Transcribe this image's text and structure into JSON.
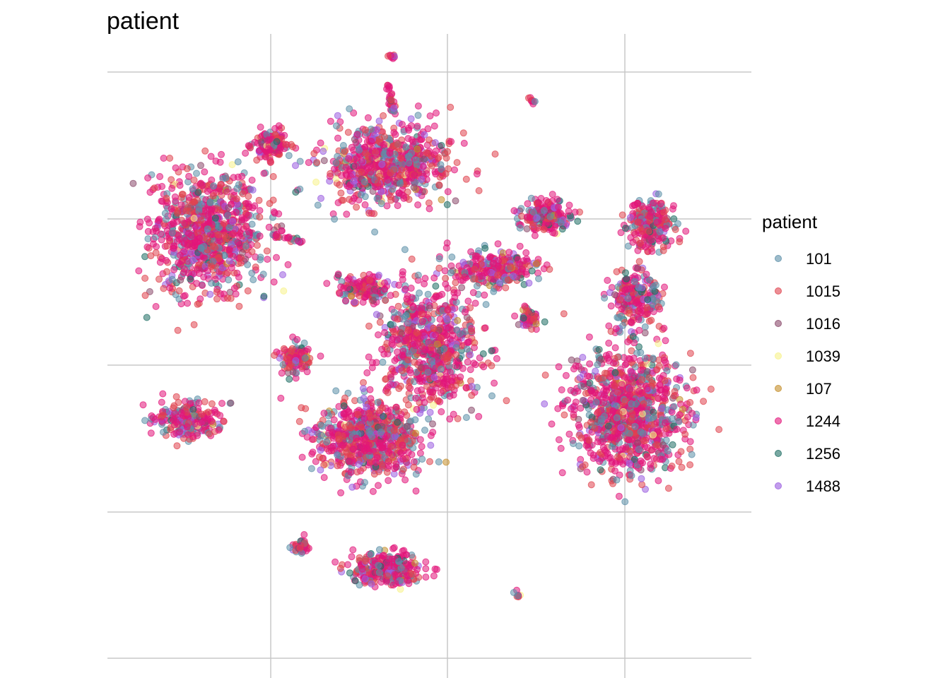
{
  "chart_data": {
    "type": "scatter",
    "title": "patient",
    "xlabel": "",
    "ylabel": "",
    "grid": true,
    "legend": {
      "title": "patient",
      "position": "right",
      "entries": [
        {
          "label": "101",
          "color": "#5b8fa8"
        },
        {
          "label": "1015",
          "color": "#e0434f"
        },
        {
          "label": "1016",
          "color": "#8a4a6b"
        },
        {
          "label": "1039",
          "color": "#f7f28a"
        },
        {
          "label": "107",
          "color": "#c48e2a"
        },
        {
          "label": "1244",
          "color": "#e2157a"
        },
        {
          "label": "1256",
          "color": "#1f6e64"
        },
        {
          "label": "1488",
          "color": "#9a5ce0"
        }
      ]
    },
    "point_alpha": 0.55,
    "clusters": [
      {
        "name": "upper-left",
        "cx": -7.6,
        "cy": 3.9,
        "sx": 1.75,
        "sy": 1.9,
        "n": 900
      },
      {
        "name": "upper-left-head",
        "cx": -5.4,
        "cy": 7.0,
        "sx": 0.55,
        "sy": 0.45,
        "n": 140
      },
      {
        "name": "top-center",
        "cx": -1.5,
        "cy": 6.3,
        "sx": 2.0,
        "sy": 1.3,
        "n": 700
      },
      {
        "name": "small-middle-left",
        "cx": -2.2,
        "cy": 1.9,
        "sx": 0.8,
        "sy": 0.45,
        "n": 140
      },
      {
        "name": "center-diagonal",
        "cx": 0.0,
        "cy": -0.2,
        "sx": 1.5,
        "sy": 2.0,
        "n": 700
      },
      {
        "name": "diagonal-arm",
        "cx": 2.2,
        "cy": 2.6,
        "sx": 1.4,
        "sy": 0.6,
        "n": 260
      },
      {
        "name": "upper-right-small",
        "cx": 4.0,
        "cy": 4.5,
        "sx": 0.8,
        "sy": 0.5,
        "n": 200
      },
      {
        "name": "lower-center-left",
        "cx": -2.1,
        "cy": -3.4,
        "sx": 1.6,
        "sy": 1.2,
        "n": 700
      },
      {
        "name": "left-mid-small",
        "cx": -4.6,
        "cy": -0.6,
        "sx": 0.45,
        "sy": 0.5,
        "n": 110
      },
      {
        "name": "right-large",
        "cx": 6.8,
        "cy": -2.5,
        "sx": 1.7,
        "sy": 2.0,
        "n": 1000
      },
      {
        "name": "right-top",
        "cx": 7.6,
        "cy": 4.2,
        "sx": 0.75,
        "sy": 0.8,
        "n": 220
      },
      {
        "name": "right-middle",
        "cx": 7.1,
        "cy": 1.6,
        "sx": 0.7,
        "sy": 1.0,
        "n": 220
      },
      {
        "name": "lower-left-small",
        "cx": -8.3,
        "cy": -2.8,
        "sx": 1.1,
        "sy": 0.55,
        "n": 220
      },
      {
        "name": "bottom-center",
        "cx": -1.4,
        "cy": -8.1,
        "sx": 1.1,
        "sy": 0.5,
        "n": 320
      },
      {
        "name": "bottom-left-tiny",
        "cx": -4.4,
        "cy": -7.3,
        "sx": 0.25,
        "sy": 0.2,
        "n": 40
      },
      {
        "name": "center-small-tri",
        "cx": 3.4,
        "cy": 0.8,
        "sx": 0.35,
        "sy": 0.35,
        "n": 50
      }
    ],
    "strands": [
      {
        "x1": -1.45,
        "y1": 9.2,
        "x2": -1.2,
        "y2": 8.2,
        "n": 30
      },
      {
        "x1": -1.4,
        "y1": 10.2,
        "x2": -1.2,
        "y2": 10.2,
        "n": 10
      },
      {
        "x1": -5.4,
        "y1": 3.8,
        "x2": -4.3,
        "y2": 3.6,
        "n": 25
      },
      {
        "x1": 3.3,
        "y1": 8.8,
        "x2": 3.6,
        "y2": 8.5,
        "n": 8
      },
      {
        "x1": 2.8,
        "y1": -8.9,
        "x2": 3.1,
        "y2": -9.1,
        "n": 8
      }
    ]
  }
}
